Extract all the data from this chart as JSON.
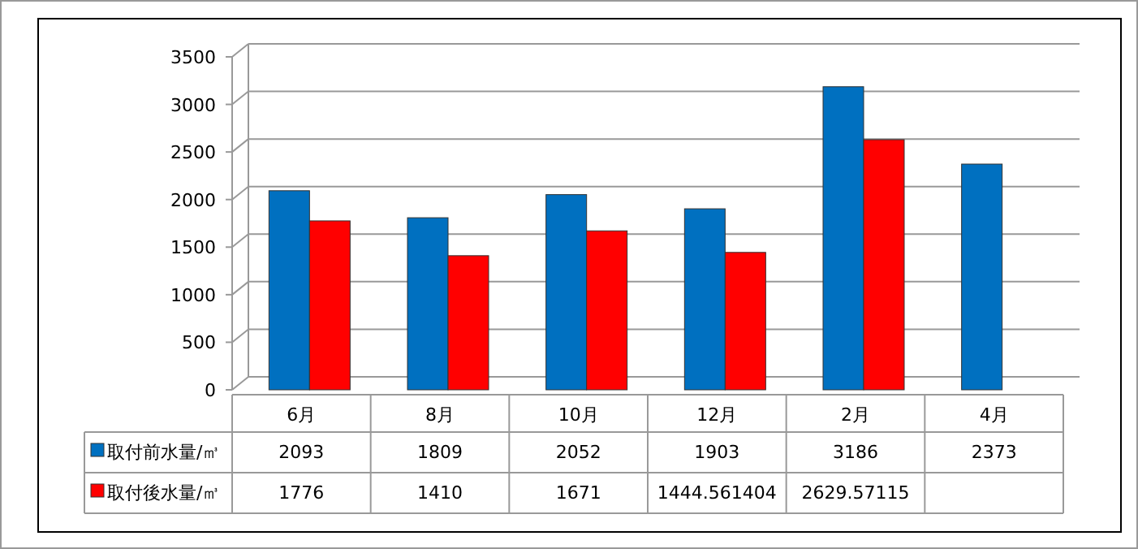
{
  "chart_data": {
    "type": "bar",
    "categories": [
      "6月",
      "8月",
      "10月",
      "12月",
      "2月",
      "4月"
    ],
    "series": [
      {
        "name": "取付前水量/㎥",
        "color": "#0070c0",
        "values": [
          2093,
          1809,
          2052,
          1903,
          3186,
          2373
        ]
      },
      {
        "name": "取付後水量/㎥",
        "color": "#ff0000",
        "values": [
          1776,
          1410,
          1671,
          1444.561404,
          2629.57115,
          null
        ]
      }
    ],
    "ylim": [
      0,
      3500
    ],
    "yticks": [
      0,
      500,
      1000,
      1500,
      2000,
      2500,
      3000,
      3500
    ],
    "grid": "y",
    "data_labels": true,
    "legend": "bottom"
  }
}
